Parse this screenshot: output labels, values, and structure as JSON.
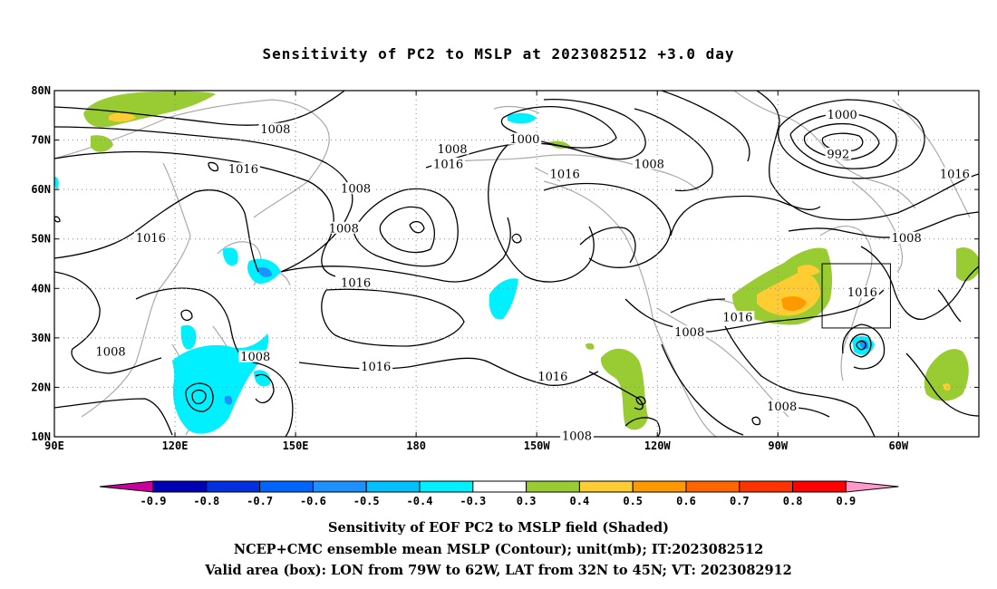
{
  "title": "Sensitivity of PC2 to MSLP at 2023082512 +3.0 day",
  "map": {
    "lon_labels": [
      "90E",
      "120E",
      "150E",
      "180",
      "150W",
      "120W",
      "90W",
      "60W"
    ],
    "lat_labels": [
      "80N",
      "70N",
      "60N",
      "50N",
      "40N",
      "30N",
      "20N",
      "10N"
    ],
    "contour_labels": [
      {
        "text": "1008",
        "lon": 145,
        "lat": 72
      },
      {
        "text": "1016",
        "lon": 137,
        "lat": 64
      },
      {
        "text": "1016",
        "lon": 114,
        "lat": 50
      },
      {
        "text": "1008",
        "lon": 165,
        "lat": 60
      },
      {
        "text": "1008",
        "lon": 162,
        "lat": 52
      },
      {
        "text": "1016",
        "lon": 165,
        "lat": 41
      },
      {
        "text": "1016",
        "lon": 170,
        "lat": 24
      },
      {
        "text": "1008",
        "lon": 104,
        "lat": 27
      },
      {
        "text": "1008",
        "lon": 140,
        "lat": 26
      },
      {
        "text": "1008",
        "lon": -171,
        "lat": 68
      },
      {
        "text": "1016",
        "lon": -172,
        "lat": 65
      },
      {
        "text": "1000",
        "lon": -153,
        "lat": 70
      },
      {
        "text": "1008",
        "lon": -122,
        "lat": 65
      },
      {
        "text": "1016",
        "lon": -143,
        "lat": 63
      },
      {
        "text": "1016",
        "lon": -146,
        "lat": 22
      },
      {
        "text": "1008",
        "lon": -140,
        "lat": 10
      },
      {
        "text": "1016",
        "lon": -100,
        "lat": 34
      },
      {
        "text": "1008",
        "lon": -112,
        "lat": 31
      },
      {
        "text": "1008",
        "lon": -89,
        "lat": 16
      },
      {
        "text": "1000",
        "lon": -74,
        "lat": 75
      },
      {
        "text": "992",
        "lon": -75,
        "lat": 67
      },
      {
        "text": "1016",
        "lon": -69,
        "lat": 39
      },
      {
        "text": "1008",
        "lon": -58,
        "lat": 50
      },
      {
        "text": "1016",
        "lon": -46,
        "lat": 63
      }
    ],
    "valid_box": {
      "lon_min": -79,
      "lon_max": -62,
      "lat_min": 32,
      "lat_max": 45
    }
  },
  "colorbar": {
    "labels": [
      "-0.9",
      "-0.8",
      "-0.7",
      "-0.6",
      "-0.5",
      "-0.4",
      "-0.3",
      "0.3",
      "0.4",
      "0.5",
      "0.6",
      "0.7",
      "0.8",
      "0.9"
    ],
    "colors": [
      "#c8009c",
      "#0000b4",
      "#0030e0",
      "#0064ff",
      "#1e90ff",
      "#00c0ff",
      "#00f0ff",
      "#ffffff",
      "#99cc33",
      "#ffcc33",
      "#ff9900",
      "#ff6600",
      "#ff3300",
      "#ff0000",
      "#ff99cc"
    ]
  },
  "captions": {
    "line1": "Sensitivity of EOF PC2 to MSLP field (Shaded)",
    "line2": "NCEP+CMC ensemble mean MSLP (Contour); unit(mb); IT:2023082512",
    "line3": "Valid area (box): LON from 79W to 62W, LAT from 32N to 45N; VT: 2023082912"
  }
}
